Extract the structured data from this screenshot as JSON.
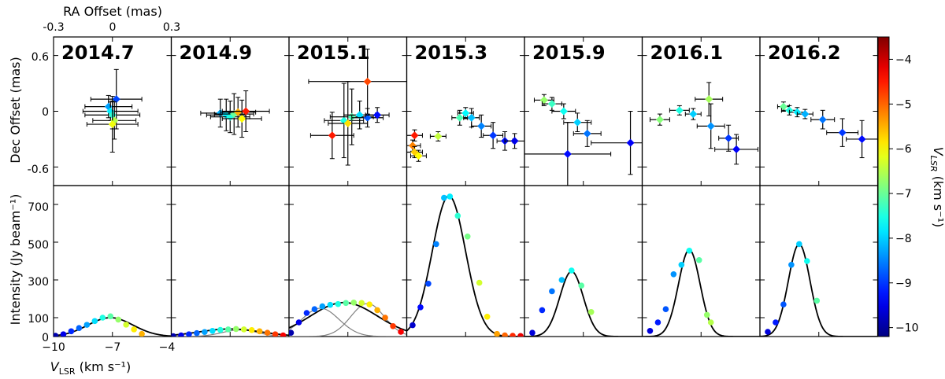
{
  "chart_data": {
    "type": "scatter",
    "epochs": [
      "2014.7",
      "2014.9",
      "2015.1",
      "2015.3",
      "2015.9",
      "2016.1",
      "2016.2"
    ],
    "top_axis": {
      "label": "RA Offset (mas)",
      "ticks": [
        "-0.3",
        "0",
        "0.3"
      ],
      "xlim": [
        -0.3,
        0.3
      ]
    },
    "spatial_axis": {
      "label": "Dec Offset (mas)",
      "ticks": [
        "0.6",
        "0",
        "-0.6"
      ],
      "ylim": [
        -0.8,
        0.8
      ]
    },
    "spectrum_axis": {
      "ylabel": "Intensity (Jy beam⁻¹)",
      "yticks": [
        "700",
        "500",
        "300",
        "100",
        "0"
      ],
      "ylim": [
        0,
        800
      ],
      "xlabel_main": "V",
      "xlabel_sub": "LSR",
      "xlabel_unit": " (km s⁻¹)",
      "xticks": [
        "−10",
        "−7",
        "−4"
      ],
      "xlim": [
        -10,
        -4
      ]
    },
    "colorbar": {
      "label_main": "V",
      "label_sub": "LSR",
      "label_unit": " (km s⁻¹)",
      "ticks": [
        "−4",
        "−5",
        "−6",
        "−7",
        "−8",
        "−9",
        "−10"
      ],
      "range": [
        -10.2,
        -3.5
      ],
      "colormap": "jet"
    },
    "panels": [
      {
        "epoch": "2014.7",
        "spots": [
          {
            "ra": 0.02,
            "dec": 0.13,
            "v": -8.9,
            "ex": 0.13,
            "ey": 0.32
          },
          {
            "ra": -0.02,
            "dec": 0.05,
            "v": -8.3,
            "ex": 0.12,
            "ey": 0.12
          },
          {
            "ra": -0.01,
            "dec": 0.0,
            "v": -7.8,
            "ex": 0.14,
            "ey": 0.1
          },
          {
            "ra": 0.0,
            "dec": -0.04,
            "v": -7.4,
            "ex": 0.14,
            "ey": 0.15
          },
          {
            "ra": 0.01,
            "dec": -0.1,
            "v": -6.5,
            "ex": 0.11,
            "ey": 0.2
          },
          {
            "ra": 0.0,
            "dec": -0.14,
            "v": -6.1,
            "ex": 0.13,
            "ey": 0.3
          }
        ],
        "spectrum": {
          "points": [
            [
              -9.9,
              4
            ],
            [
              -9.5,
              12
            ],
            [
              -9.1,
              28
            ],
            [
              -8.7,
              45
            ],
            [
              -8.3,
              62
            ],
            [
              -7.9,
              82
            ],
            [
              -7.5,
              100
            ],
            [
              -7.1,
              107
            ],
            [
              -6.7,
              90
            ],
            [
              -6.3,
              63
            ],
            [
              -5.9,
              38
            ],
            [
              -5.5,
              14
            ]
          ],
          "fits": [
            {
              "amp": 100,
              "center": -7.1,
              "sigma": 1.15,
              "style": "black"
            }
          ]
        }
      },
      {
        "epoch": "2014.9",
        "spots": [
          {
            "ra": -0.05,
            "dec": -0.02,
            "v": -8.2,
            "ex": 0.1,
            "ey": 0.15
          },
          {
            "ra": -0.02,
            "dec": -0.04,
            "v": -7.8,
            "ex": 0.1,
            "ey": 0.17
          },
          {
            "ra": 0.0,
            "dec": -0.06,
            "v": -7.5,
            "ex": 0.1,
            "ey": 0.17
          },
          {
            "ra": 0.02,
            "dec": -0.03,
            "v": -7.0,
            "ex": 0.1,
            "ey": 0.22
          },
          {
            "ra": 0.04,
            "dec": -0.01,
            "v": -5.5,
            "ex": 0.09,
            "ey": 0.16
          },
          {
            "ra": 0.06,
            "dec": -0.08,
            "v": -6.0,
            "ex": 0.1,
            "ey": 0.2
          },
          {
            "ra": 0.08,
            "dec": 0.0,
            "v": -4.5,
            "ex": 0.12,
            "ey": 0.22
          }
        ],
        "spectrum": {
          "points": [
            [
              -9.9,
              2
            ],
            [
              -9.5,
              6
            ],
            [
              -9.1,
              12
            ],
            [
              -8.7,
              18
            ],
            [
              -8.3,
              24
            ],
            [
              -7.9,
              30
            ],
            [
              -7.5,
              35
            ],
            [
              -7.1,
              38
            ],
            [
              -6.7,
              40
            ],
            [
              -6.3,
              38
            ],
            [
              -5.9,
              34
            ],
            [
              -5.5,
              28
            ],
            [
              -5.1,
              20
            ],
            [
              -4.7,
              12
            ],
            [
              -4.3,
              6
            ]
          ],
          "fits": [
            {
              "amp": 35,
              "center": -6.5,
              "sigma": 0.9,
              "style": "grey"
            },
            {
              "amp": 40,
              "center": -7.0,
              "sigma": 1.6,
              "style": "black"
            }
          ]
        }
      },
      {
        "epoch": "2015.1",
        "spots": [
          {
            "ra": 0.1,
            "dec": 0.32,
            "v": -4.8,
            "ex": 0.3,
            "ey": 0.35
          },
          {
            "ra": -0.02,
            "dec": -0.1,
            "v": -7.5,
            "ex": 0.1,
            "ey": 0.4
          },
          {
            "ra": 0.02,
            "dec": -0.06,
            "v": -7.2,
            "ex": 0.11,
            "ey": 0.3
          },
          {
            "ra": 0.06,
            "dec": -0.04,
            "v": -7.9,
            "ex": 0.08,
            "ey": 0.15
          },
          {
            "ra": 0.1,
            "dec": -0.07,
            "v": -8.8,
            "ex": 0.08,
            "ey": 0.1
          },
          {
            "ra": 0.15,
            "dec": -0.04,
            "v": -9.3,
            "ex": 0.06,
            "ey": 0.08
          },
          {
            "ra": -0.08,
            "dec": -0.26,
            "v": -4.5,
            "ex": 0.11,
            "ey": 0.25
          },
          {
            "ra": 0.0,
            "dec": -0.13,
            "v": -5.8,
            "ex": 0.1,
            "ey": 0.45
          }
        ],
        "spectrum": {
          "points": [
            [
              -9.9,
              20
            ],
            [
              -9.5,
              75
            ],
            [
              -9.1,
              125
            ],
            [
              -8.7,
              145
            ],
            [
              -8.3,
              160
            ],
            [
              -7.9,
              168
            ],
            [
              -7.5,
              172
            ],
            [
              -7.1,
              178
            ],
            [
              -6.7,
              180
            ],
            [
              -6.3,
              178
            ],
            [
              -5.9,
              170
            ],
            [
              -5.5,
              140
            ],
            [
              -5.1,
              100
            ],
            [
              -4.7,
              55
            ],
            [
              -4.3,
              25
            ]
          ],
          "fits": [
            {
              "amp": 150,
              "center": -8.4,
              "sigma": 0.95,
              "style": "grey"
            },
            {
              "amp": 175,
              "center": -6.0,
              "sigma": 0.85,
              "style": "grey"
            },
            {
              "amp": 180,
              "center": -7.2,
              "sigma": 1.7,
              "style": "black"
            }
          ]
        }
      },
      {
        "epoch": "2015.3",
        "spots": [
          {
            "ra": -0.26,
            "dec": -0.26,
            "v": -4.5,
            "ex": 0.04,
            "ey": 0.06
          },
          {
            "ra": -0.27,
            "dec": -0.37,
            "v": -5.2,
            "ex": 0.04,
            "ey": 0.06
          },
          {
            "ra": -0.26,
            "dec": -0.44,
            "v": -5.7,
            "ex": 0.04,
            "ey": 0.06
          },
          {
            "ra": -0.24,
            "dec": -0.48,
            "v": -6.0,
            "ex": 0.04,
            "ey": 0.06
          },
          {
            "ra": -0.14,
            "dec": -0.27,
            "v": -6.4,
            "ex": 0.04,
            "ey": 0.05
          },
          {
            "ra": -0.03,
            "dec": -0.07,
            "v": -7.2,
            "ex": 0.04,
            "ey": 0.08
          },
          {
            "ra": 0.0,
            "dec": -0.02,
            "v": -7.7,
            "ex": 0.04,
            "ey": 0.06
          },
          {
            "ra": 0.03,
            "dec": -0.07,
            "v": -8.1,
            "ex": 0.04,
            "ey": 0.1
          },
          {
            "ra": 0.08,
            "dec": -0.16,
            "v": -8.5,
            "ex": 0.05,
            "ey": 0.12
          },
          {
            "ra": 0.14,
            "dec": -0.26,
            "v": -9.0,
            "ex": 0.05,
            "ey": 0.14
          },
          {
            "ra": 0.2,
            "dec": -0.32,
            "v": -9.3,
            "ex": 0.04,
            "ey": 0.1
          },
          {
            "ra": 0.25,
            "dec": -0.32,
            "v": -9.5,
            "ex": 0.05,
            "ey": 0.08
          }
        ],
        "spectrum": {
          "points": [
            [
              -9.7,
              60
            ],
            [
              -9.3,
              155
            ],
            [
              -8.9,
              280
            ],
            [
              -8.5,
              490
            ],
            [
              -8.1,
              735
            ],
            [
              -7.8,
              742
            ],
            [
              -7.4,
              640
            ],
            [
              -6.9,
              530
            ],
            [
              -6.3,
              285
            ],
            [
              -5.9,
              105
            ],
            [
              -5.4,
              14
            ],
            [
              -5.0,
              6
            ],
            [
              -4.6,
              4
            ],
            [
              -4.2,
              3
            ]
          ],
          "fits": [
            {
              "amp": 745,
              "center": -7.85,
              "sigma": 0.85,
              "style": "black"
            }
          ]
        }
      },
      {
        "epoch": "2015.9",
        "spots": [
          {
            "ra": -0.2,
            "dec": 0.12,
            "v": -6.7,
            "ex": 0.05,
            "ey": 0.06
          },
          {
            "ra": -0.16,
            "dec": 0.08,
            "v": -7.3,
            "ex": 0.05,
            "ey": 0.07
          },
          {
            "ra": -0.1,
            "dec": 0.0,
            "v": -7.6,
            "ex": 0.06,
            "ey": 0.08
          },
          {
            "ra": -0.03,
            "dec": -0.12,
            "v": -8.0,
            "ex": 0.07,
            "ey": 0.1
          },
          {
            "ra": 0.02,
            "dec": -0.24,
            "v": -8.6,
            "ex": 0.07,
            "ey": 0.14
          },
          {
            "ra": -0.08,
            "dec": -0.46,
            "v": -9.3,
            "ex": 0.22,
            "ey": 0.34
          },
          {
            "ra": 0.24,
            "dec": -0.34,
            "v": -9.4,
            "ex": 0.2,
            "ey": 0.34
          }
        ],
        "spectrum": {
          "points": [
            [
              -9.6,
              20
            ],
            [
              -9.1,
              140
            ],
            [
              -8.6,
              240
            ],
            [
              -8.1,
              300
            ],
            [
              -7.6,
              350
            ],
            [
              -7.1,
              270
            ],
            [
              -6.6,
              130
            ]
          ],
          "fits": [
            {
              "amp": 345,
              "center": -7.6,
              "sigma": 0.6,
              "style": "black"
            }
          ]
        }
      },
      {
        "epoch": "2016.1",
        "spots": [
          {
            "ra": -0.21,
            "dec": -0.09,
            "v": -6.8,
            "ex": 0.05,
            "ey": 0.06
          },
          {
            "ra": -0.11,
            "dec": 0.01,
            "v": -7.5,
            "ex": 0.05,
            "ey": 0.05
          },
          {
            "ra": -0.04,
            "dec": -0.03,
            "v": -8.0,
            "ex": 0.04,
            "ey": 0.06
          },
          {
            "ra": 0.04,
            "dec": 0.13,
            "v": -6.6,
            "ex": 0.07,
            "ey": 0.18
          },
          {
            "ra": 0.05,
            "dec": -0.16,
            "v": -8.4,
            "ex": 0.07,
            "ey": 0.24
          },
          {
            "ra": 0.14,
            "dec": -0.29,
            "v": -9.0,
            "ex": 0.05,
            "ey": 0.14
          },
          {
            "ra": 0.18,
            "dec": -0.41,
            "v": -9.4,
            "ex": 0.11,
            "ey": 0.16
          }
        ],
        "spectrum": {
          "points": [
            [
              -9.6,
              30
            ],
            [
              -9.2,
              75
            ],
            [
              -8.8,
              145
            ],
            [
              -8.4,
              330
            ],
            [
              -8.0,
              380
            ],
            [
              -7.6,
              455
            ],
            [
              -7.1,
              405
            ],
            [
              -6.7,
              115
            ],
            [
              -6.5,
              75
            ]
          ],
          "fits": [
            {
              "amp": 460,
              "center": -7.6,
              "sigma": 0.55,
              "style": "black"
            }
          ]
        }
      },
      {
        "epoch": "2016.2",
        "spots": [
          {
            "ra": -0.18,
            "dec": 0.05,
            "v": -7.0,
            "ex": 0.03,
            "ey": 0.05
          },
          {
            "ra": -0.15,
            "dec": 0.01,
            "v": -7.5,
            "ex": 0.04,
            "ey": 0.05
          },
          {
            "ra": -0.11,
            "dec": -0.01,
            "v": -7.8,
            "ex": 0.04,
            "ey": 0.05
          },
          {
            "ra": -0.07,
            "dec": -0.03,
            "v": -8.2,
            "ex": 0.04,
            "ey": 0.05
          },
          {
            "ra": 0.02,
            "dec": -0.09,
            "v": -8.6,
            "ex": 0.06,
            "ey": 0.1
          },
          {
            "ra": 0.12,
            "dec": -0.23,
            "v": -9.0,
            "ex": 0.08,
            "ey": 0.15
          },
          {
            "ra": 0.22,
            "dec": -0.3,
            "v": -9.3,
            "ex": 0.08,
            "ey": 0.2
          }
        ],
        "spectrum": {
          "points": [
            [
              -9.6,
              25
            ],
            [
              -9.2,
              75
            ],
            [
              -8.8,
              170
            ],
            [
              -8.4,
              380
            ],
            [
              -8.0,
              490
            ],
            [
              -7.6,
              400
            ],
            [
              -7.1,
              190
            ]
          ],
          "fits": [
            {
              "amp": 490,
              "center": -8.0,
              "sigma": 0.55,
              "style": "black"
            }
          ]
        }
      }
    ]
  }
}
